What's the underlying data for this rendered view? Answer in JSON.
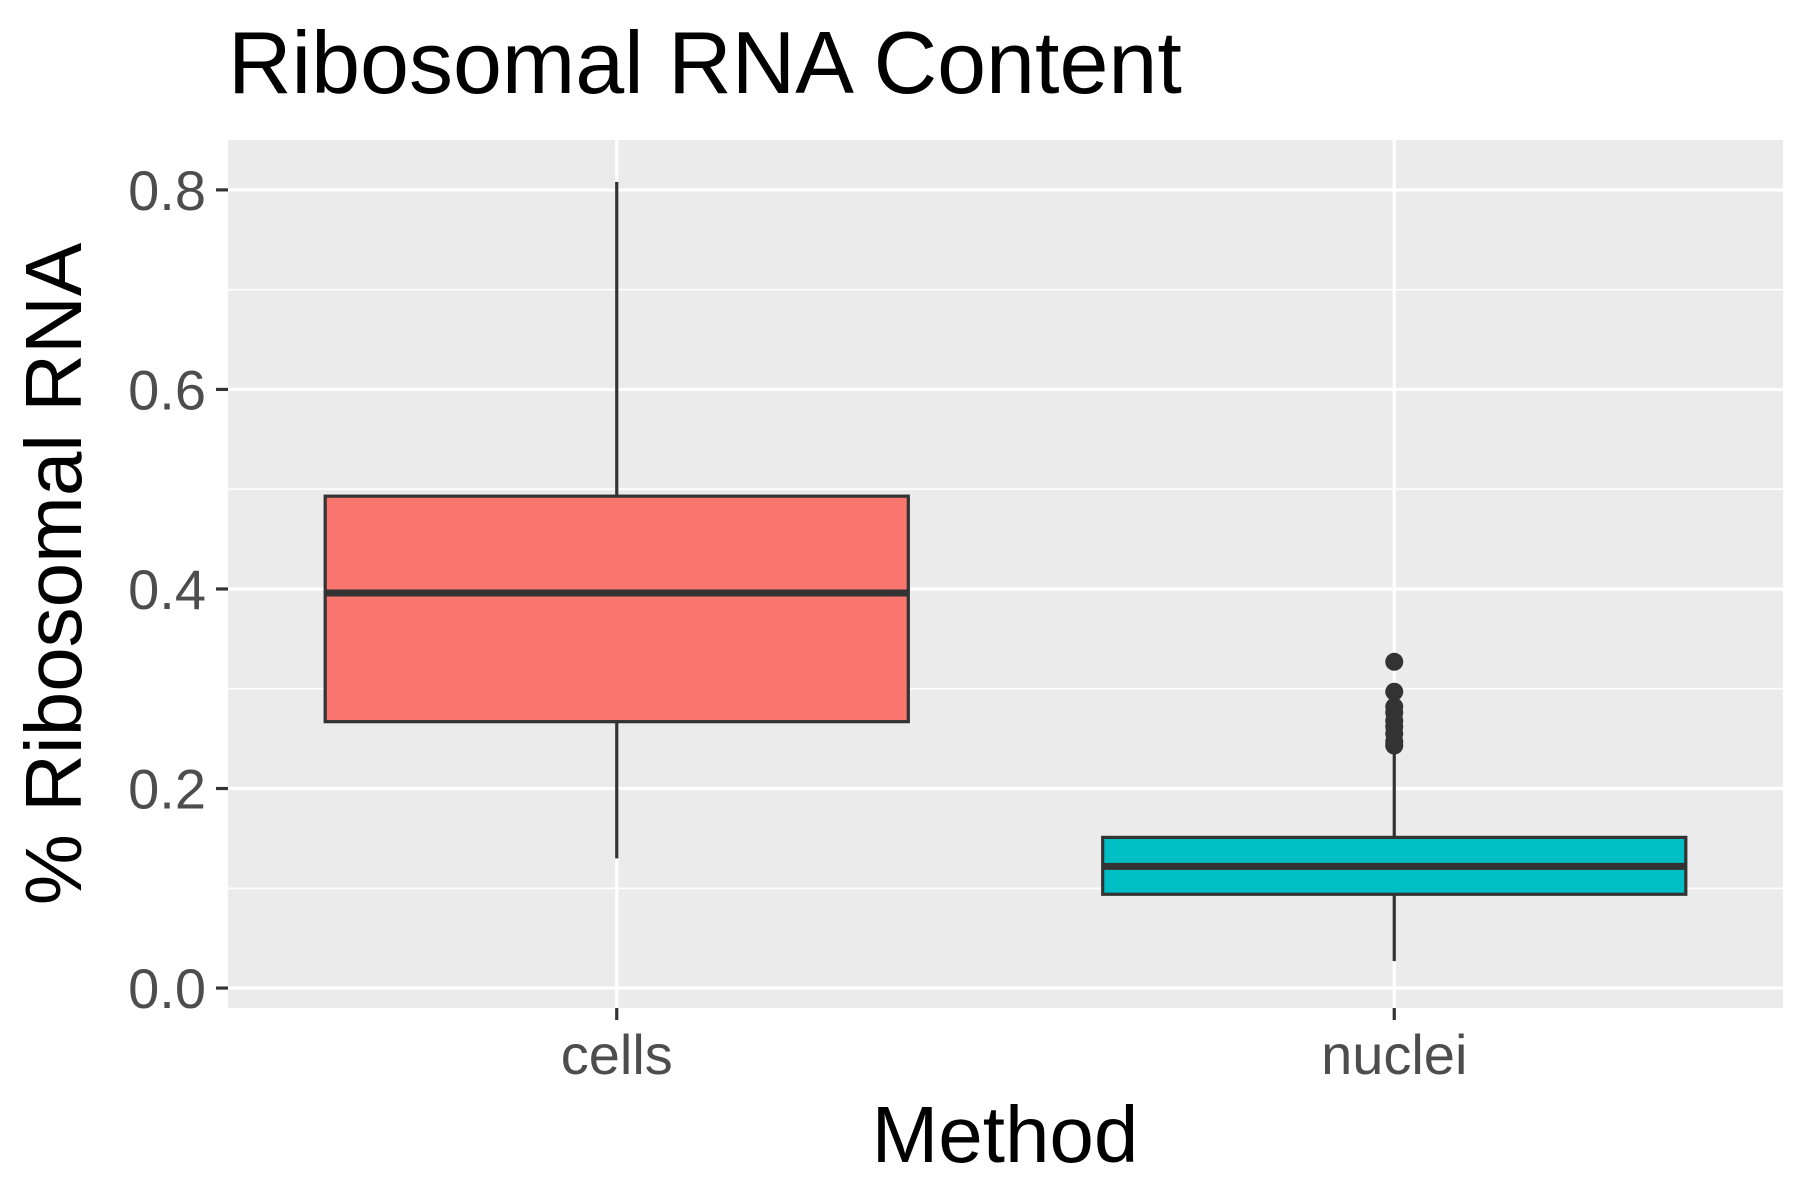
{
  "chart_data": {
    "type": "boxplot",
    "title": "Ribosomal RNA Content",
    "xlabel": "Method",
    "ylabel": "% Ribosomal RNA",
    "ylim": [
      -0.02,
      0.85
    ],
    "y_ticks": [
      "0.0",
      "0.2",
      "0.4",
      "0.6",
      "0.8"
    ],
    "grid": true,
    "legend": "none",
    "categories": [
      "cells",
      "nuclei"
    ],
    "boxes": [
      {
        "category": "cells",
        "whisker_low": 0.13,
        "q1": 0.267,
        "median": 0.396,
        "q3": 0.493,
        "whisker_high": 0.808,
        "outliers": [],
        "color": "#F8766D"
      },
      {
        "category": "nuclei",
        "whisker_low": 0.027,
        "q1": 0.094,
        "median": 0.122,
        "q3": 0.151,
        "whisker_high": 0.236,
        "outliers": [
          0.243,
          0.247,
          0.255,
          0.262,
          0.268,
          0.276,
          0.282,
          0.297,
          0.327
        ],
        "color": "#00BFC4"
      }
    ]
  },
  "colors": {
    "panel_background": "#EBEBEB",
    "grid_line": "#FFFFFF",
    "box_outline": "#333333"
  }
}
